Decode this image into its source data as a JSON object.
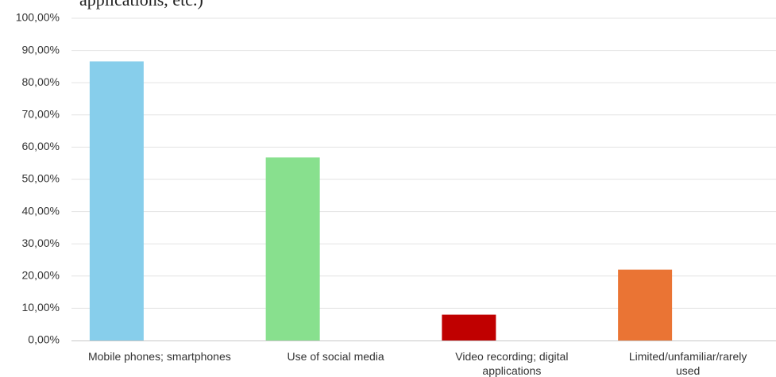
{
  "chart_data": {
    "type": "bar",
    "title_fragment": "applications, etc.)",
    "categories": [
      [
        "Mobile phones; smartphones"
      ],
      [
        "Use of social media"
      ],
      [
        "Video recording; digital",
        "applications"
      ],
      [
        "Limited/unfamiliar/rarely",
        "used"
      ]
    ],
    "values": [
      86.6,
      56.8,
      8.0,
      22.0
    ],
    "colors": [
      "#87ceeb",
      "#88e08e",
      "#c00000",
      "#ea7434"
    ],
    "ylim": [
      0,
      100
    ],
    "yticks": [
      0,
      10,
      20,
      30,
      40,
      50,
      60,
      70,
      80,
      90,
      100
    ],
    "ytick_labels": [
      "0,00%",
      "10,00%",
      "20,00%",
      "30,00%",
      "40,00%",
      "50,00%",
      "60,00%",
      "70,00%",
      "80,00%",
      "90,00%",
      "100,00%"
    ],
    "grid": true,
    "legend": "none"
  }
}
